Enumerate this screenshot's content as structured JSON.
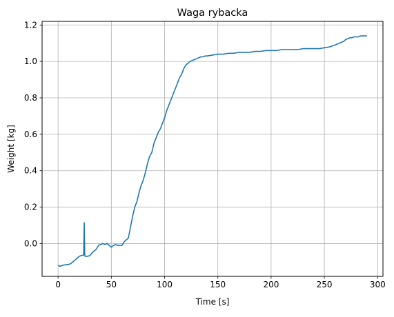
{
  "chart_data": {
    "type": "line",
    "title": "Waga rybacka",
    "xlabel": "Time [s]",
    "ylabel": "Weight [kg]",
    "xlim": [
      -15,
      305
    ],
    "ylim": [
      -0.18,
      1.22
    ],
    "xticks": [
      0,
      50,
      100,
      150,
      200,
      250,
      300
    ],
    "yticks": [
      0.0,
      0.2,
      0.4,
      0.6,
      0.8,
      1.0,
      1.2
    ],
    "xtick_labels": [
      "0",
      "50",
      "100",
      "150",
      "200",
      "250",
      "300"
    ],
    "ytick_labels": [
      "0.0",
      "0.2",
      "0.4",
      "0.6",
      "0.8",
      "1.0",
      "1.2"
    ],
    "grid": true,
    "line_color": "#1f77b4",
    "grid_color": "#b0b0b0",
    "series": [
      {
        "x": [
          0,
          2,
          4,
          6,
          8,
          10,
          12,
          14,
          16,
          18,
          20,
          22,
          24,
          24.6,
          25,
          25.4,
          26,
          28,
          30,
          32,
          34,
          36,
          38,
          40,
          42,
          44,
          46,
          48,
          50,
          52,
          54,
          56,
          58,
          60,
          62,
          64,
          66,
          68,
          70,
          72,
          74,
          76,
          78,
          80,
          82,
          84,
          86,
          88,
          90,
          92,
          94,
          96,
          98,
          100,
          102,
          104,
          106,
          108,
          110,
          112,
          114,
          116,
          118,
          120,
          122,
          124,
          126,
          128,
          130,
          132,
          134,
          136,
          138,
          140,
          145,
          150,
          155,
          160,
          165,
          170,
          175,
          180,
          185,
          190,
          195,
          200,
          205,
          210,
          215,
          220,
          225,
          230,
          235,
          240,
          245,
          250,
          255,
          260,
          262,
          264,
          266,
          268,
          270,
          272,
          274,
          276,
          278,
          280,
          282,
          284,
          286,
          288,
          290
        ],
        "y": [
          -0.12,
          -0.125,
          -0.12,
          -0.118,
          -0.115,
          -0.115,
          -0.11,
          -0.1,
          -0.09,
          -0.08,
          -0.07,
          -0.065,
          -0.065,
          0.115,
          -0.06,
          -0.07,
          -0.07,
          -0.07,
          -0.065,
          -0.05,
          -0.04,
          -0.03,
          -0.01,
          -0.005,
          -0.0,
          -0.005,
          -0.0,
          -0.01,
          -0.02,
          -0.01,
          -0.005,
          -0.01,
          -0.01,
          -0.01,
          0.01,
          0.02,
          0.03,
          0.09,
          0.15,
          0.2,
          0.23,
          0.28,
          0.32,
          0.35,
          0.39,
          0.44,
          0.48,
          0.5,
          0.55,
          0.58,
          0.61,
          0.63,
          0.66,
          0.69,
          0.73,
          0.76,
          0.79,
          0.82,
          0.85,
          0.88,
          0.91,
          0.93,
          0.96,
          0.98,
          0.99,
          1.0,
          1.005,
          1.01,
          1.015,
          1.02,
          1.025,
          1.025,
          1.03,
          1.03,
          1.035,
          1.04,
          1.04,
          1.045,
          1.045,
          1.05,
          1.05,
          1.05,
          1.055,
          1.055,
          1.06,
          1.06,
          1.06,
          1.065,
          1.065,
          1.065,
          1.065,
          1.07,
          1.07,
          1.07,
          1.07,
          1.075,
          1.08,
          1.09,
          1.095,
          1.1,
          1.105,
          1.11,
          1.12,
          1.125,
          1.13,
          1.13,
          1.135,
          1.135,
          1.135,
          1.14,
          1.14,
          1.14,
          1.14
        ]
      }
    ]
  }
}
